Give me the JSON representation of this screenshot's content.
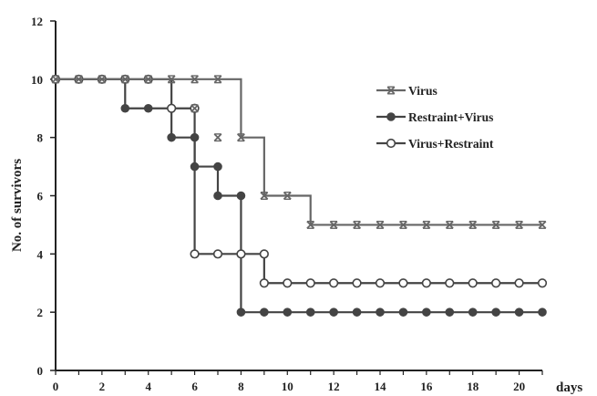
{
  "chart_data": {
    "type": "line",
    "subtype": "step",
    "title": "",
    "xlabel": "days",
    "ylabel": "No. of survivors",
    "xlim": [
      0,
      21
    ],
    "ylim": [
      0,
      12
    ],
    "xticks": [
      0,
      2,
      4,
      6,
      8,
      10,
      12,
      14,
      16,
      18,
      20
    ],
    "yticks": [
      0,
      2,
      4,
      6,
      8,
      10,
      12
    ],
    "grid": false,
    "legend_position": "right",
    "series": [
      {
        "name": "Virus",
        "marker": "x",
        "color": "#666666",
        "x": [
          0,
          1,
          2,
          3,
          4,
          5,
          6,
          7,
          8,
          9,
          10,
          11,
          12,
          13,
          14,
          15,
          16,
          17,
          18,
          19,
          20,
          21
        ],
        "y": [
          10,
          10,
          10,
          10,
          10,
          10,
          10,
          10,
          8,
          6,
          6,
          5,
          5,
          5,
          5,
          5,
          5,
          5,
          5,
          5,
          5,
          5
        ],
        "extra_points": [
          [
            6,
            9
          ],
          [
            7,
            8
          ]
        ]
      },
      {
        "name": "Restraint+Virus",
        "marker": "filled-circle",
        "color": "#444444",
        "x": [
          0,
          1,
          2,
          3,
          4,
          5,
          6,
          7,
          8,
          9,
          10,
          11,
          12,
          13,
          14,
          15,
          16,
          17,
          18,
          19,
          20,
          21
        ],
        "y": [
          10,
          10,
          10,
          9,
          9,
          8,
          7,
          6,
          2,
          2,
          2,
          2,
          2,
          2,
          2,
          2,
          2,
          2,
          2,
          2,
          2,
          2
        ],
        "extra_points": [
          [
            6,
            8
          ],
          [
            7,
            7
          ],
          [
            8,
            6
          ]
        ]
      },
      {
        "name": "Virus+Restraint",
        "marker": "open-circle",
        "color": "#444444",
        "x": [
          0,
          1,
          2,
          3,
          4,
          5,
          6,
          7,
          8,
          9,
          10,
          11,
          12,
          13,
          14,
          15,
          16,
          17,
          18,
          19,
          20,
          21
        ],
        "y": [
          10,
          10,
          10,
          10,
          10,
          9,
          4,
          4,
          4,
          3,
          3,
          3,
          3,
          3,
          3,
          3,
          3,
          3,
          3,
          3,
          3,
          3
        ],
        "extra_points": [
          [
            6,
            9
          ],
          [
            9,
            4
          ]
        ]
      }
    ]
  }
}
